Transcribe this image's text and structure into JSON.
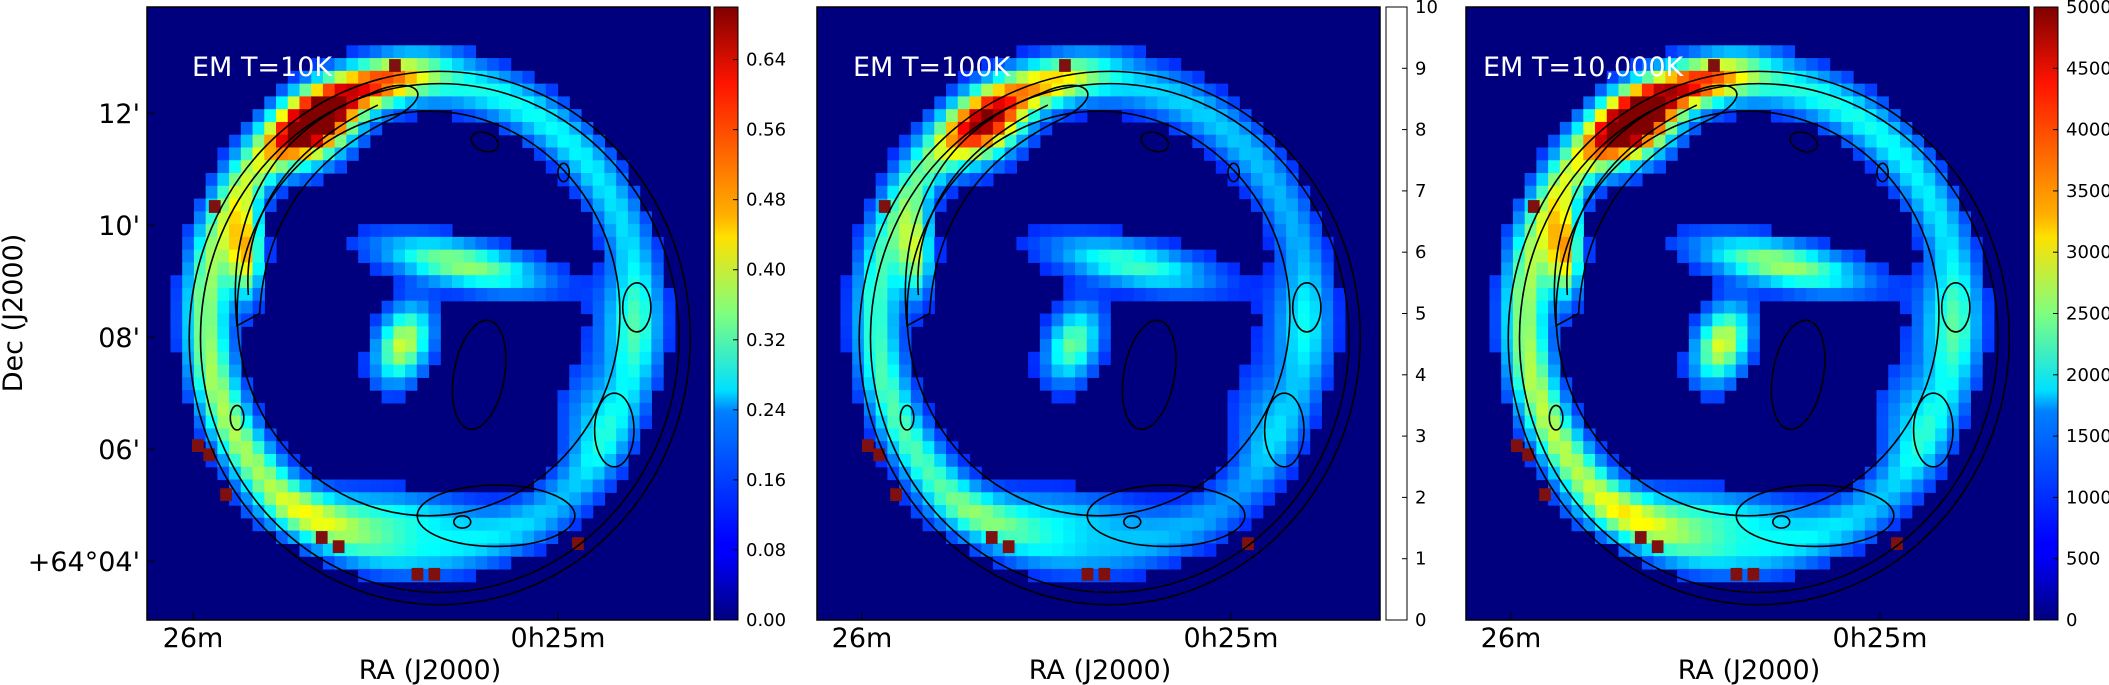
{
  "chart_data": [
    {
      "type": "heatmap",
      "title": "EM T=10K",
      "xlabel": "RA (J2000)",
      "ylabel": "Dec (J2000)",
      "x_ticks": [
        "26m",
        "0h25m"
      ],
      "y_ticks": [
        "12'",
        "10'",
        "08'",
        "06'",
        "+64°04'"
      ],
      "colorbar": {
        "colormap": "jet",
        "range": [
          0,
          0.7
        ],
        "ticks": [
          "0.00",
          "0.08",
          "0.16",
          "0.24",
          "0.32",
          "0.40",
          "0.48",
          "0.56",
          "0.64"
        ]
      },
      "peak": 0.66
    },
    {
      "type": "heatmap",
      "title": "EM T=100K",
      "xlabel": "RA (J2000)",
      "ylabel": "",
      "x_ticks": [
        "26m",
        "0h25m"
      ],
      "y_ticks": [],
      "colorbar": {
        "colormap": "white",
        "range": [
          0,
          10
        ],
        "ticks": [
          "0",
          "1",
          "2",
          "3",
          "4",
          "5",
          "6",
          "7",
          "8",
          "9",
          "10"
        ]
      },
      "peak": 7.4
    },
    {
      "type": "heatmap",
      "title": "EM T=10,000K",
      "xlabel": "RA (J2000)",
      "ylabel": "",
      "x_ticks": [
        "26m",
        "0h25m"
      ],
      "y_ticks": [],
      "colorbar": {
        "colormap": "jet",
        "range": [
          0,
          5000
        ],
        "ticks": [
          "0",
          "500",
          "1000",
          "1500",
          "2000",
          "2500",
          "3000",
          "3500",
          "4000",
          "4500",
          "5000"
        ]
      },
      "peak": 4900
    }
  ]
}
